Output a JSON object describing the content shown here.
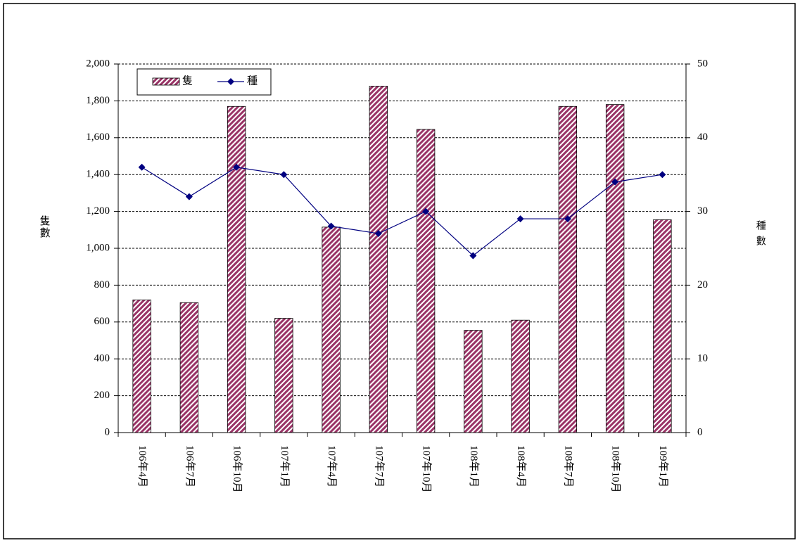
{
  "chart_data": {
    "type": "bar-line",
    "categories": [
      "106年4月",
      "106年7月",
      "106年10月",
      "107年1月",
      "107年4月",
      "107年7月",
      "107年10月",
      "108年1月",
      "108年4月",
      "108年7月",
      "108年10月",
      "109年1月"
    ],
    "series": [
      {
        "name": "隻",
        "type": "bar",
        "color": "#993366",
        "values": [
          720,
          705,
          1770,
          620,
          1115,
          1880,
          1645,
          555,
          610,
          1770,
          1780,
          1155
        ]
      },
      {
        "name": "種",
        "type": "line",
        "axis": "y2",
        "color": "#000080",
        "values": [
          36,
          32,
          36,
          35,
          28,
          27,
          30,
          24,
          29,
          29,
          34,
          35
        ]
      }
    ],
    "ylabel": "隻數",
    "y2label": "種數",
    "ylim": [
      0,
      2000
    ],
    "yticks": [
      0,
      200,
      400,
      600,
      800,
      {
        "value": 1000,
        "label": "1,000"
      },
      {
        "value": 1200,
        "label": "1,200"
      },
      {
        "value": 1400,
        "label": "1,400"
      },
      {
        "value": 1600,
        "label": "1,600"
      },
      {
        "value": 1800,
        "label": "1,800"
      },
      {
        "value": 2000,
        "label": "2,000"
      }
    ],
    "y2lim": [
      0,
      50
    ],
    "y2ticks": [
      0,
      10,
      20,
      30,
      40,
      50
    ],
    "grid": true,
    "legend": "top-left"
  }
}
